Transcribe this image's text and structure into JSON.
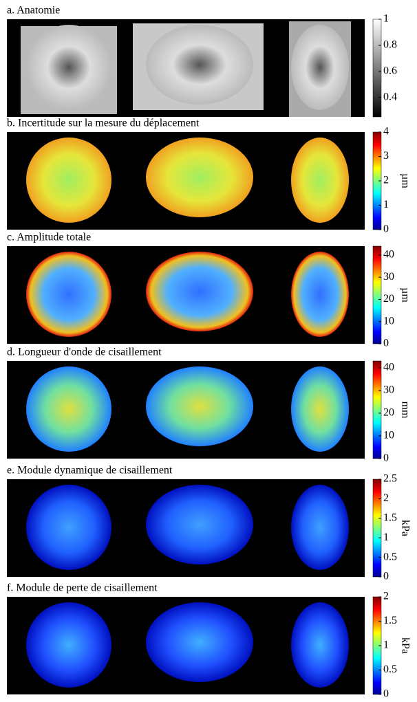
{
  "panels": [
    {
      "title": "a. Anatomie",
      "colorbar": {
        "lim": [
          0.25,
          1
        ],
        "ticks": [
          1,
          0.8,
          0.6,
          0.4
        ],
        "map": "gray"
      }
    },
    {
      "title": "b. Incertitude sur la mesure du déplacement",
      "unit": "µm",
      "colorbar": {
        "lim": [
          0,
          4
        ],
        "ticks": [
          4,
          3,
          2,
          1,
          0
        ],
        "map": "jet"
      }
    },
    {
      "title": "c. Amplitude totale",
      "unit": "µm",
      "colorbar": {
        "lim": [
          0,
          44
        ],
        "ticks": [
          40,
          30,
          20,
          10,
          0
        ],
        "map": "jet"
      }
    },
    {
      "title": "d. Longueur d'onde de cisaillement",
      "unit": "mm",
      "colorbar": {
        "lim": [
          0,
          43
        ],
        "ticks": [
          40,
          30,
          20,
          10,
          0
        ],
        "map": "jet"
      }
    },
    {
      "title": "e. Module dynamique de cisaillement",
      "unit": "kPa",
      "colorbar": {
        "lim": [
          0,
          2.5
        ],
        "ticks": [
          2.5,
          2,
          1.5,
          1,
          0.5,
          0
        ],
        "map": "jet"
      }
    },
    {
      "title": "f. Module de perte de cisaillement",
      "unit": "kPa",
      "colorbar": {
        "lim": [
          0,
          2
        ],
        "ticks": [
          2,
          1.5,
          1,
          0.5,
          0
        ],
        "map": "jet"
      }
    }
  ]
}
